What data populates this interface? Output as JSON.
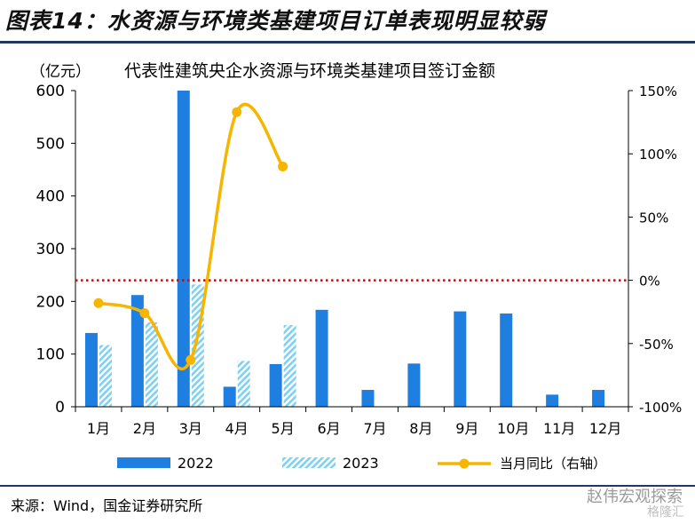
{
  "header": {
    "title": "图表14：水资源与环境类基建项目订单表现明显较弱"
  },
  "footer": {
    "source": "来源：Wind，国金证券研究所",
    "watermark": "赵伟宏观探索",
    "watermark_sub": "格隆汇"
  },
  "chart_data": {
    "type": "bar",
    "title": "代表性建筑央企水资源与环境类基建项目签订金额",
    "unit_label": "（亿元）",
    "categories": [
      "1月",
      "2月",
      "3月",
      "4月",
      "5月",
      "6月",
      "7月",
      "8月",
      "9月",
      "10月",
      "11月",
      "12月"
    ],
    "ylim": [
      0,
      600
    ],
    "y_ticks": [
      0,
      100,
      200,
      300,
      400,
      500,
      600
    ],
    "y2lim": [
      -100,
      150
    ],
    "y2_ticks": [
      "-100%",
      "-50%",
      "0%",
      "50%",
      "100%",
      "150%"
    ],
    "y2_tick_values": [
      -100,
      -50,
      0,
      50,
      100,
      150
    ],
    "series": [
      {
        "name": "2022",
        "type": "bar",
        "color": "#1f7fe0",
        "values": [
          140,
          212,
          600,
          38,
          81,
          184,
          32,
          82,
          181,
          177,
          23,
          32
        ]
      },
      {
        "name": "2023",
        "type": "bar",
        "color": "#7fd1f3",
        "pattern": "hatched",
        "values": [
          117,
          160,
          232,
          87,
          155,
          null,
          null,
          null,
          null,
          null,
          null,
          null
        ]
      },
      {
        "name": "当月同比（右轴）",
        "type": "line",
        "axis": "right",
        "color": "#f7b500",
        "values": [
          -18,
          -26,
          -63,
          133,
          90,
          null,
          null,
          null,
          null,
          null,
          null,
          null
        ]
      }
    ],
    "reference_line": {
      "axis": "right",
      "value": 0,
      "color": "#e00000",
      "style": "dotted"
    },
    "legend_position": "bottom",
    "grid": false
  }
}
